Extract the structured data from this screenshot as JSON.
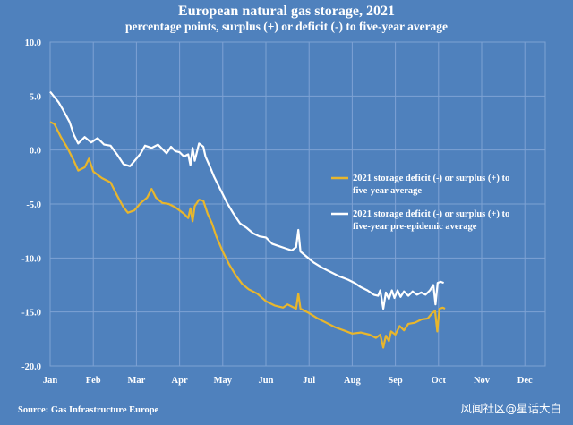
{
  "chart_data": {
    "type": "line",
    "title": "European natural gas storage, 2021",
    "subtitle": "percentage points, surplus (+) or deficit (-) to five-year average",
    "source": "Source: Gas Infrastructure Europe",
    "ylim": [
      -20,
      10
    ],
    "yticks": [
      "10.0",
      "5.0",
      "0.0",
      "-5.0",
      "-10.0",
      "-15.0",
      "-20.0"
    ],
    "months": [
      "Jan",
      "Feb",
      "Mar",
      "Apr",
      "May",
      "Jun",
      "Jul",
      "Aug",
      "Sep",
      "Oct",
      "Nov",
      "Dec"
    ],
    "grid": true,
    "legend_position": "right",
    "series": [
      {
        "name": "2021 storage deficit (-) or surplus (+) to five-year average",
        "legend_lines": [
          "2021 storage deficit (-) or surplus (+) to",
          "five-year average"
        ],
        "color": "#e8b62c",
        "points": [
          [
            0.0,
            2.6
          ],
          [
            0.1,
            2.4
          ],
          [
            0.25,
            1.2
          ],
          [
            0.4,
            0.2
          ],
          [
            0.55,
            -1.0
          ],
          [
            0.65,
            -1.9
          ],
          [
            0.8,
            -1.6
          ],
          [
            0.9,
            -0.8
          ],
          [
            1.0,
            -2.0
          ],
          [
            1.2,
            -2.6
          ],
          [
            1.4,
            -3.0
          ],
          [
            1.55,
            -4.2
          ],
          [
            1.7,
            -5.3
          ],
          [
            1.8,
            -5.8
          ],
          [
            1.95,
            -5.6
          ],
          [
            2.1,
            -4.9
          ],
          [
            2.25,
            -4.4
          ],
          [
            2.35,
            -3.6
          ],
          [
            2.45,
            -4.4
          ],
          [
            2.6,
            -4.9
          ],
          [
            2.75,
            -5.0
          ],
          [
            2.9,
            -5.3
          ],
          [
            3.0,
            -5.6
          ],
          [
            3.1,
            -5.9
          ],
          [
            3.2,
            -6.3
          ],
          [
            3.25,
            -5.4
          ],
          [
            3.3,
            -6.6
          ],
          [
            3.35,
            -5.2
          ],
          [
            3.45,
            -4.6
          ],
          [
            3.55,
            -4.7
          ],
          [
            3.65,
            -5.9
          ],
          [
            3.75,
            -6.8
          ],
          [
            3.85,
            -8.0
          ],
          [
            4.0,
            -9.4
          ],
          [
            4.15,
            -10.6
          ],
          [
            4.3,
            -11.6
          ],
          [
            4.45,
            -12.4
          ],
          [
            4.6,
            -12.9
          ],
          [
            4.8,
            -13.3
          ],
          [
            5.0,
            -14.0
          ],
          [
            5.2,
            -14.4
          ],
          [
            5.4,
            -14.6
          ],
          [
            5.5,
            -14.3
          ],
          [
            5.6,
            -14.5
          ],
          [
            5.7,
            -14.7
          ],
          [
            5.75,
            -13.3
          ],
          [
            5.8,
            -14.7
          ],
          [
            6.0,
            -15.1
          ],
          [
            6.2,
            -15.6
          ],
          [
            6.4,
            -16.0
          ],
          [
            6.6,
            -16.4
          ],
          [
            6.8,
            -16.7
          ],
          [
            7.0,
            -17.0
          ],
          [
            7.2,
            -16.9
          ],
          [
            7.4,
            -17.1
          ],
          [
            7.55,
            -17.4
          ],
          [
            7.65,
            -17.1
          ],
          [
            7.72,
            -18.3
          ],
          [
            7.78,
            -17.2
          ],
          [
            7.85,
            -17.7
          ],
          [
            7.9,
            -16.8
          ],
          [
            8.0,
            -17.1
          ],
          [
            8.1,
            -16.3
          ],
          [
            8.2,
            -16.7
          ],
          [
            8.3,
            -16.1
          ],
          [
            8.45,
            -16.0
          ],
          [
            8.6,
            -15.7
          ],
          [
            8.75,
            -15.6
          ],
          [
            8.85,
            -15.1
          ],
          [
            8.92,
            -14.9
          ],
          [
            8.97,
            -16.8
          ],
          [
            9.02,
            -14.7
          ],
          [
            9.1,
            -14.6
          ],
          [
            9.15,
            -14.7
          ]
        ]
      },
      {
        "name": "2021 storage deficit (-) or surplus (+) to five-year pre-epidemic average",
        "legend_lines": [
          "2021 storage deficit (-) or surplus (+) to",
          "five-year pre-epidemic average"
        ],
        "color": "#ffffff",
        "points": [
          [
            0.0,
            5.4
          ],
          [
            0.1,
            4.9
          ],
          [
            0.2,
            4.4
          ],
          [
            0.3,
            3.7
          ],
          [
            0.45,
            2.6
          ],
          [
            0.55,
            1.4
          ],
          [
            0.65,
            0.6
          ],
          [
            0.8,
            1.2
          ],
          [
            0.95,
            0.7
          ],
          [
            1.1,
            1.1
          ],
          [
            1.25,
            0.5
          ],
          [
            1.4,
            0.4
          ],
          [
            1.55,
            -0.4
          ],
          [
            1.7,
            -1.3
          ],
          [
            1.85,
            -1.5
          ],
          [
            2.0,
            -0.8
          ],
          [
            2.1,
            -0.3
          ],
          [
            2.2,
            0.4
          ],
          [
            2.35,
            0.2
          ],
          [
            2.5,
            0.5
          ],
          [
            2.6,
            0.1
          ],
          [
            2.7,
            -0.3
          ],
          [
            2.8,
            0.3
          ],
          [
            2.9,
            -0.1
          ],
          [
            3.0,
            -0.2
          ],
          [
            3.1,
            -0.6
          ],
          [
            3.2,
            -0.4
          ],
          [
            3.25,
            -1.4
          ],
          [
            3.3,
            0.2
          ],
          [
            3.35,
            -1.0
          ],
          [
            3.45,
            0.6
          ],
          [
            3.55,
            0.3
          ],
          [
            3.6,
            -0.6
          ],
          [
            3.7,
            -1.5
          ],
          [
            3.8,
            -2.5
          ],
          [
            3.95,
            -3.7
          ],
          [
            4.1,
            -4.9
          ],
          [
            4.25,
            -5.9
          ],
          [
            4.4,
            -6.8
          ],
          [
            4.55,
            -7.2
          ],
          [
            4.7,
            -7.7
          ],
          [
            4.85,
            -8.0
          ],
          [
            5.0,
            -8.1
          ],
          [
            5.15,
            -8.7
          ],
          [
            5.3,
            -8.9
          ],
          [
            5.45,
            -9.1
          ],
          [
            5.6,
            -9.3
          ],
          [
            5.7,
            -9.0
          ],
          [
            5.75,
            -7.4
          ],
          [
            5.8,
            -9.4
          ],
          [
            5.95,
            -9.9
          ],
          [
            6.1,
            -10.4
          ],
          [
            6.3,
            -10.9
          ],
          [
            6.5,
            -11.3
          ],
          [
            6.7,
            -11.7
          ],
          [
            6.9,
            -12.0
          ],
          [
            7.05,
            -12.3
          ],
          [
            7.2,
            -12.7
          ],
          [
            7.35,
            -13.0
          ],
          [
            7.5,
            -13.4
          ],
          [
            7.6,
            -13.5
          ],
          [
            7.65,
            -13.0
          ],
          [
            7.72,
            -14.7
          ],
          [
            7.78,
            -13.2
          ],
          [
            7.85,
            -13.8
          ],
          [
            7.92,
            -13.0
          ],
          [
            7.98,
            -13.7
          ],
          [
            8.05,
            -13.0
          ],
          [
            8.12,
            -13.6
          ],
          [
            8.2,
            -13.1
          ],
          [
            8.3,
            -13.5
          ],
          [
            8.4,
            -13.1
          ],
          [
            8.5,
            -13.4
          ],
          [
            8.6,
            -13.2
          ],
          [
            8.7,
            -13.4
          ],
          [
            8.8,
            -13.0
          ],
          [
            8.88,
            -12.5
          ],
          [
            8.93,
            -14.3
          ],
          [
            8.98,
            -12.3
          ],
          [
            9.05,
            -12.2
          ],
          [
            9.12,
            -12.3
          ]
        ]
      }
    ]
  },
  "watermark": "风闻社区@星话大白"
}
